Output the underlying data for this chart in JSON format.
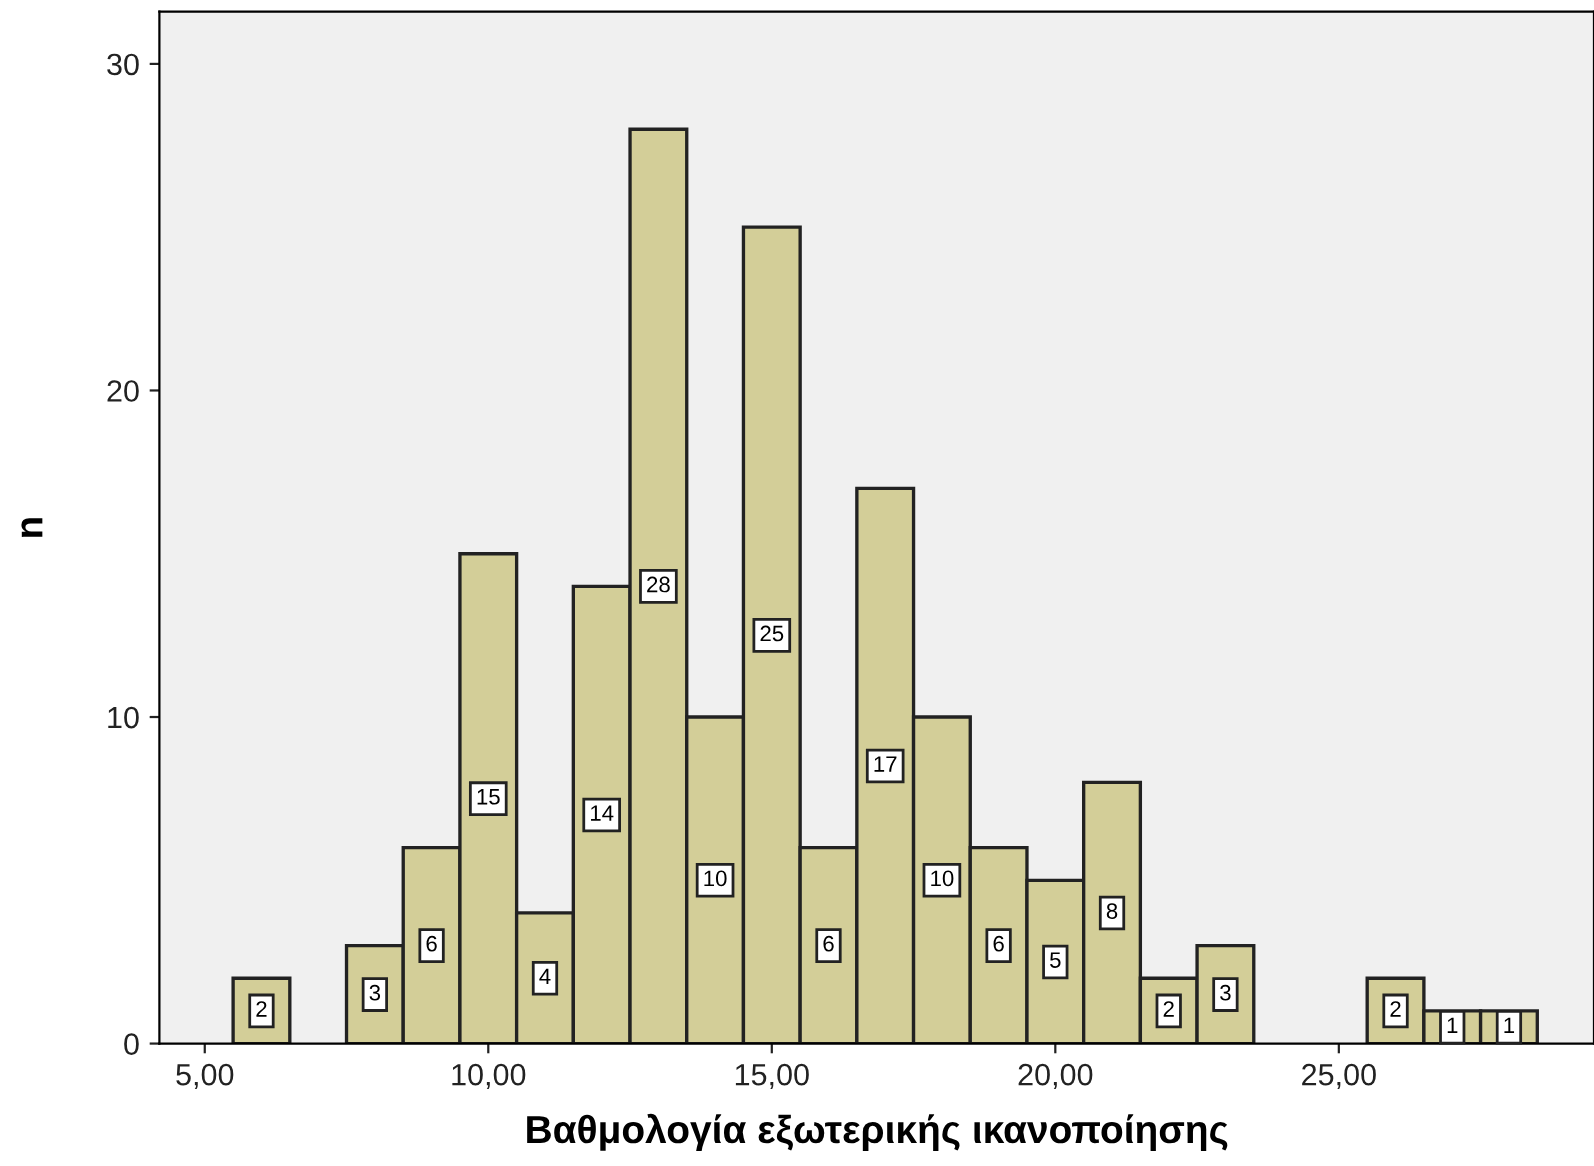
{
  "chart_data": {
    "type": "histogram",
    "xlabel": "Βαθμολογία εξωτερικής ικανοποίησης",
    "ylabel": "n",
    "bins": [
      5.5,
      6.5,
      7.5,
      8.5,
      9.5,
      10.5,
      11.5,
      12.5,
      13.5,
      14.5,
      15.5,
      16.5,
      17.5,
      18.5,
      19.5,
      20.5,
      21.5,
      22.5,
      23.5,
      24.5,
      25.5,
      26.5,
      27.5,
      28.5
    ],
    "values": [
      2,
      0,
      3,
      6,
      15,
      4,
      14,
      28,
      10,
      25,
      6,
      17,
      10,
      6,
      5,
      8,
      2,
      3,
      0,
      0,
      2,
      1,
      1
    ],
    "value_labels": [
      "2",
      null,
      "3",
      "6",
      "15",
      "4",
      "14",
      "28",
      "10",
      "25",
      "6",
      "17",
      "10",
      "6",
      "5",
      "8",
      "2",
      "3",
      null,
      null,
      "2",
      "1",
      "1"
    ],
    "color": "#d3ce98",
    "xlim": [
      4.2,
      29.5
    ],
    "ylim": [
      0,
      31.6
    ],
    "xticks": [
      {
        "value": 5,
        "label": "5,00"
      },
      {
        "value": 10,
        "label": "10,00"
      },
      {
        "value": 15,
        "label": "15,00"
      },
      {
        "value": 20,
        "label": "20,00"
      },
      {
        "value": 25,
        "label": "25,00"
      }
    ],
    "yticks": [
      0,
      10,
      20,
      30
    ],
    "grid": false,
    "legend": false
  }
}
